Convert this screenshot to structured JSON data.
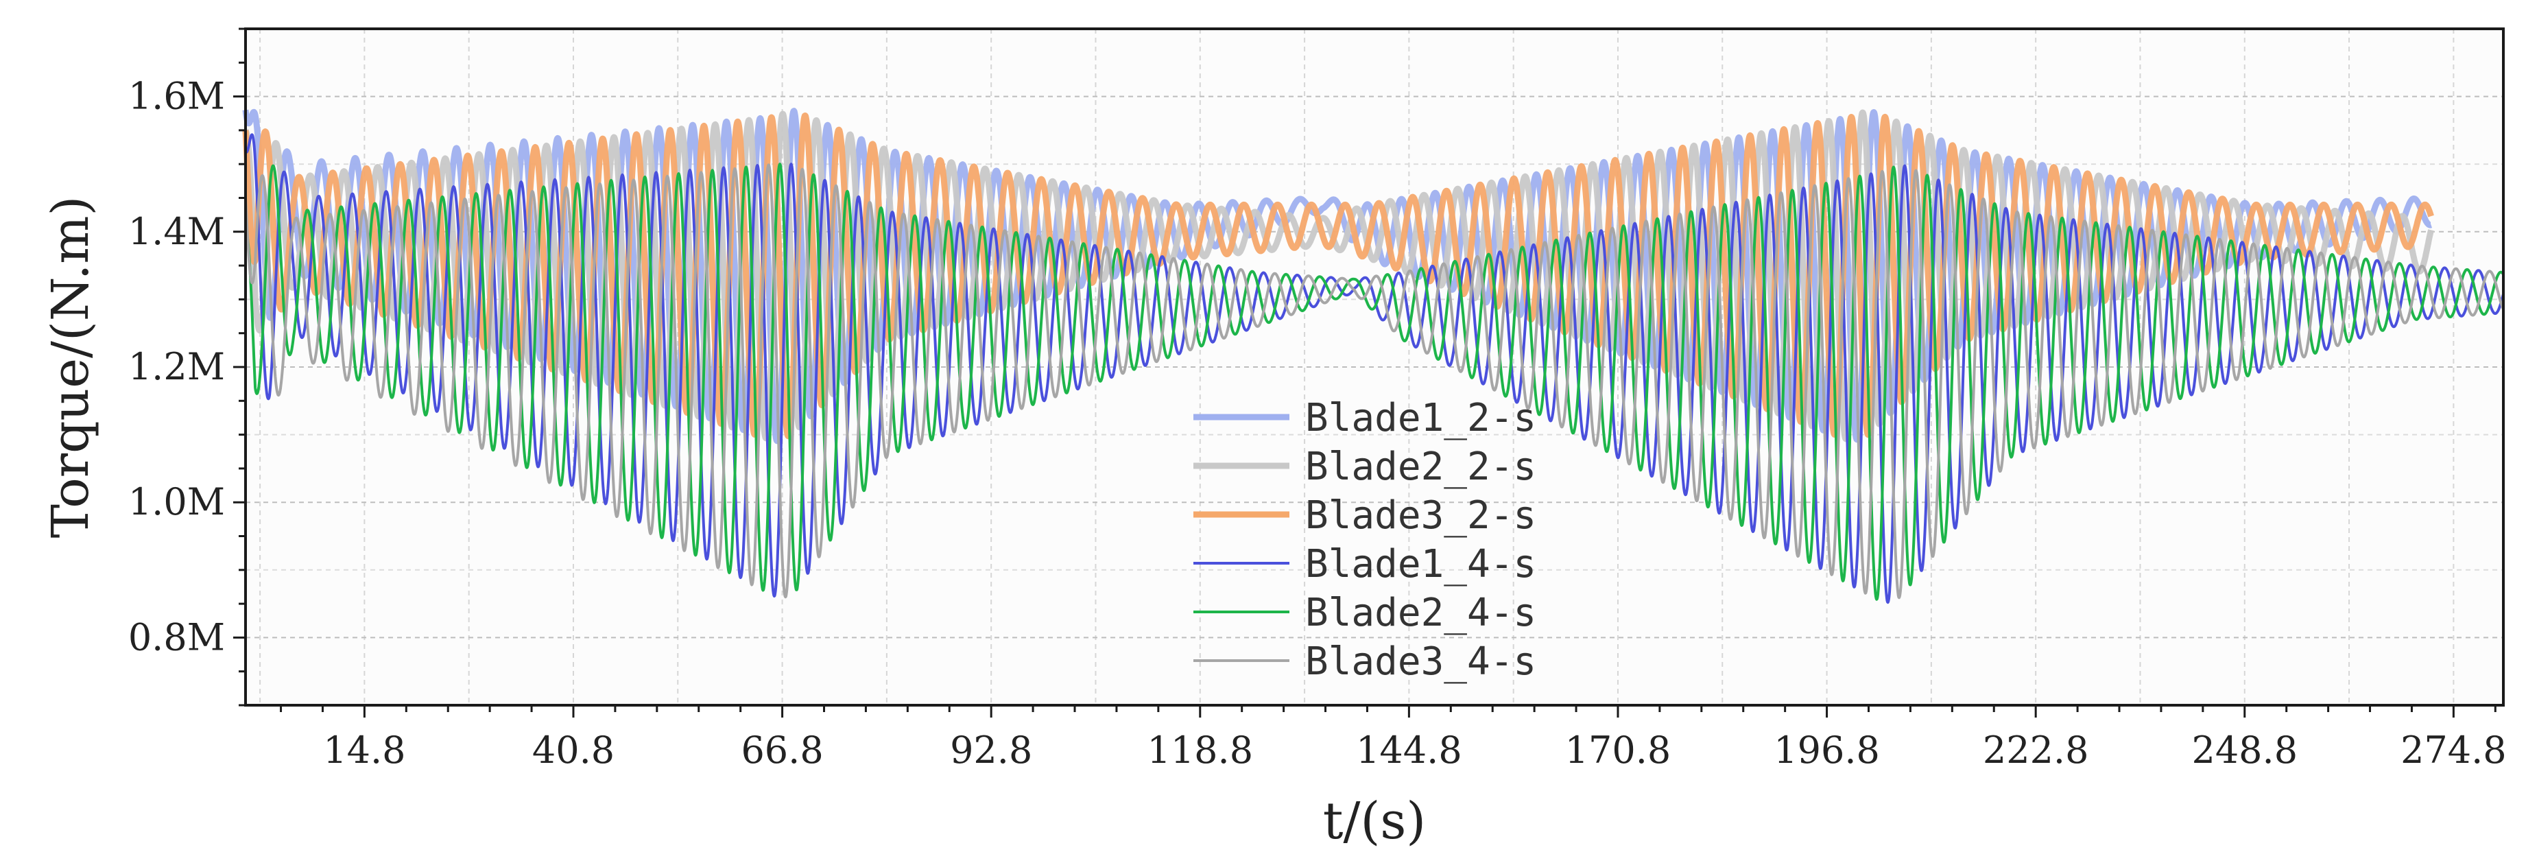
{
  "chart_data": {
    "type": "line",
    "title": "",
    "xlabel": "t/(s)",
    "ylabel": "Torque/(N.m)",
    "xlim": [
      0,
      281
    ],
    "ylim": [
      0.7,
      1.7
    ],
    "x_ticks": [
      14.8,
      40.8,
      66.8,
      92.8,
      118.8,
      144.8,
      170.8,
      196.8,
      222.8,
      248.8,
      274.8
    ],
    "x_tick_labels": [
      "14.8",
      "40.8",
      "66.8",
      "92.8",
      "118.8",
      "144.8",
      "170.8",
      "196.8",
      "222.8",
      "248.8",
      "274.8"
    ],
    "y_ticks": [
      0.8,
      1.0,
      1.2,
      1.4,
      1.6
    ],
    "y_tick_labels": [
      "0.8M",
      "1.0M",
      "1.2M",
      "1.4M",
      "1.6M"
    ],
    "grid": true,
    "legend_position": "center",
    "osc_period_s": 4.2,
    "series": [
      {
        "name": "Blade1_2-s",
        "color": "#9fb0ef",
        "stroke": "thick",
        "phase_deg": 0,
        "start": 1.58,
        "envelope_t": [
          0,
          3,
          6,
          66,
          68,
          80,
          116,
          134,
          140,
          200,
          202,
          214,
          250,
          272
        ],
        "envelope_center": [
          1.45,
          1.42,
          1.42,
          1.33,
          1.34,
          1.38,
          1.4,
          1.44,
          1.4,
          1.33,
          1.34,
          1.38,
          1.4,
          1.43
        ],
        "envelope_amp": [
          0.13,
          0.15,
          0.08,
          0.24,
          0.24,
          0.14,
          0.04,
          0.01,
          0.04,
          0.24,
          0.24,
          0.14,
          0.04,
          0.02
        ]
      },
      {
        "name": "Blade2_2-s",
        "color": "#c8c8c8",
        "stroke": "thick",
        "phase_deg": 120,
        "start": 1.55,
        "envelope_t": [
          0,
          3,
          6,
          66,
          68,
          80,
          116,
          134,
          140,
          200,
          202,
          214,
          250,
          272
        ],
        "envelope_center": [
          1.4,
          1.4,
          1.4,
          1.33,
          1.34,
          1.38,
          1.4,
          1.4,
          1.4,
          1.33,
          1.34,
          1.38,
          1.4,
          1.38
        ],
        "envelope_amp": [
          0.14,
          0.15,
          0.08,
          0.24,
          0.24,
          0.14,
          0.04,
          0.02,
          0.04,
          0.24,
          0.24,
          0.14,
          0.04,
          0.04
        ]
      },
      {
        "name": "Blade3_2-s",
        "color": "#f5a86b",
        "stroke": "thick",
        "phase_deg": 240,
        "start": 1.55,
        "envelope_t": [
          0,
          3,
          6,
          66,
          68,
          80,
          116,
          134,
          140,
          200,
          202,
          214,
          250,
          272
        ],
        "envelope_center": [
          1.4,
          1.4,
          1.4,
          1.33,
          1.34,
          1.38,
          1.4,
          1.41,
          1.4,
          1.33,
          1.34,
          1.38,
          1.4,
          1.41
        ],
        "envelope_amp": [
          0.14,
          0.15,
          0.08,
          0.24,
          0.24,
          0.14,
          0.04,
          0.03,
          0.04,
          0.24,
          0.24,
          0.14,
          0.04,
          0.03
        ]
      },
      {
        "name": "Blade1_4-s",
        "color": "#4a50dc",
        "stroke": "thin",
        "phase_deg": 30,
        "start": 1.52,
        "envelope_t": [
          0,
          3,
          6,
          66,
          68,
          80,
          126,
          138,
          144,
          204,
          206,
          220,
          270,
          281
        ],
        "envelope_center": [
          1.38,
          1.35,
          1.35,
          1.18,
          1.18,
          1.25,
          1.3,
          1.32,
          1.29,
          1.17,
          1.18,
          1.25,
          1.31,
          1.31
        ],
        "envelope_amp": [
          0.18,
          0.2,
          0.1,
          0.32,
          0.32,
          0.18,
          0.04,
          0.01,
          0.05,
          0.32,
          0.32,
          0.18,
          0.04,
          0.03
        ]
      },
      {
        "name": "Blade2_4-s",
        "color": "#1db54a",
        "stroke": "thin",
        "phase_deg": 150,
        "start": 1.4,
        "envelope_t": [
          0,
          3,
          6,
          66,
          68,
          80,
          126,
          138,
          144,
          204,
          206,
          220,
          270,
          281
        ],
        "envelope_center": [
          1.33,
          1.33,
          1.33,
          1.18,
          1.18,
          1.25,
          1.3,
          1.32,
          1.29,
          1.17,
          1.18,
          1.25,
          1.31,
          1.31
        ],
        "envelope_amp": [
          0.16,
          0.18,
          0.1,
          0.32,
          0.32,
          0.18,
          0.04,
          0.01,
          0.05,
          0.32,
          0.32,
          0.18,
          0.04,
          0.03
        ]
      },
      {
        "name": "Blade3_4-s",
        "color": "#a6a6a6",
        "stroke": "thin",
        "phase_deg": 270,
        "start": 1.45,
        "envelope_t": [
          0,
          3,
          6,
          66,
          68,
          80,
          126,
          138,
          144,
          204,
          206,
          220,
          270,
          281
        ],
        "envelope_center": [
          1.33,
          1.3,
          1.32,
          1.18,
          1.18,
          1.25,
          1.3,
          1.32,
          1.29,
          1.17,
          1.18,
          1.25,
          1.31,
          1.31
        ],
        "envelope_amp": [
          0.16,
          0.18,
          0.1,
          0.32,
          0.32,
          0.18,
          0.04,
          0.01,
          0.05,
          0.32,
          0.32,
          0.18,
          0.04,
          0.03
        ]
      }
    ]
  }
}
